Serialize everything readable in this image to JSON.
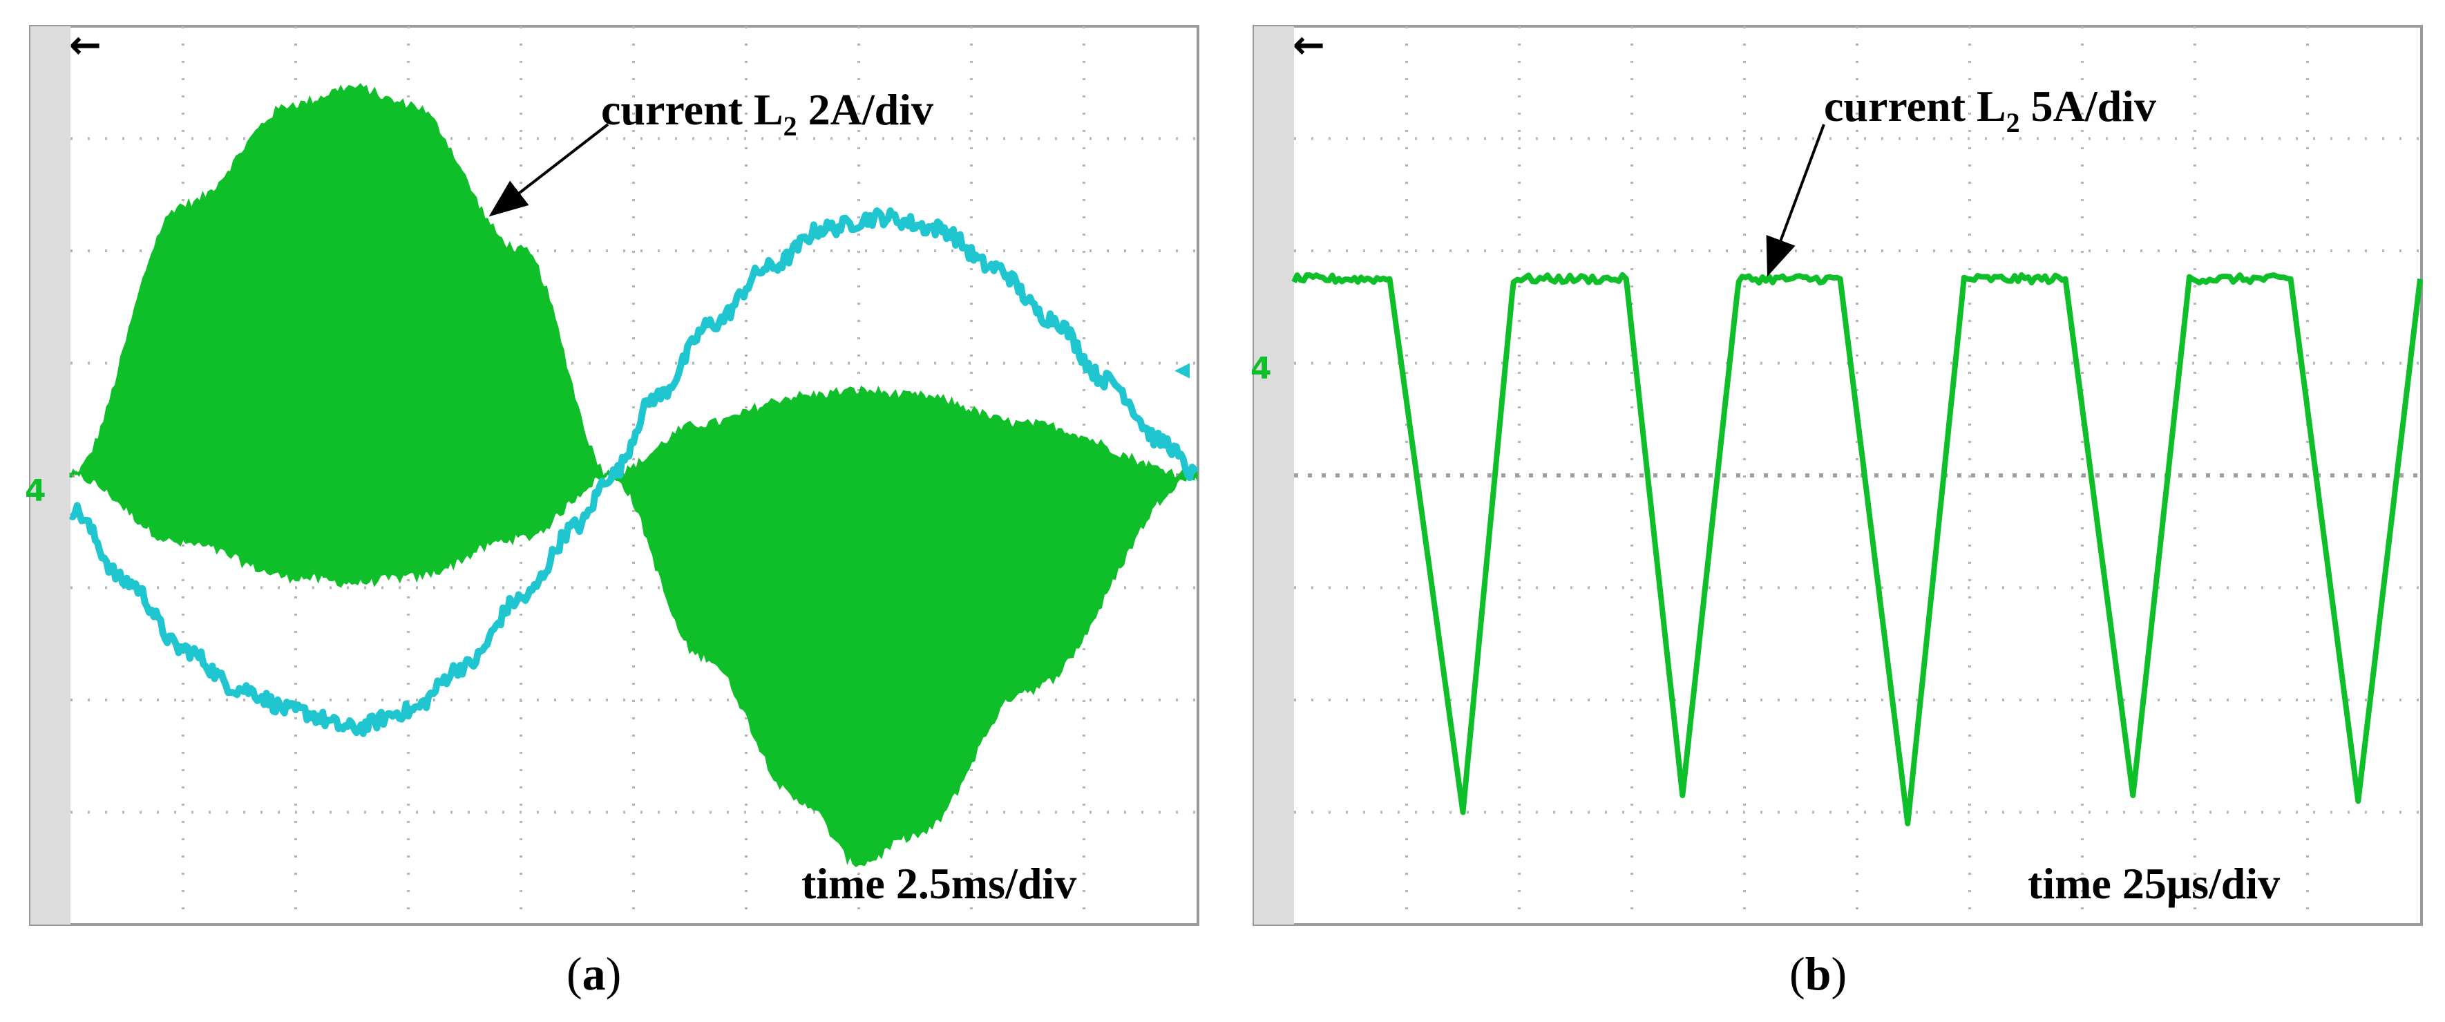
{
  "chart_data": [
    {
      "panel_label": "(a)",
      "panel_letter": "a",
      "type": "line",
      "title": "",
      "annotations": {
        "trace_label_prefix": "current L",
        "trace_label_sub": "2",
        "trace_label_suffix": " 2A/div",
        "timebase": "time 2.5ms/div"
      },
      "grid": true,
      "divisions": {
        "x": 10,
        "y": 8
      },
      "xlim": [
        0,
        10
      ],
      "ylim": [
        -4,
        4
      ],
      "colors": {
        "green": "#0fbf2a",
        "cyan": "#1fc6cf"
      },
      "channel_marker": "4",
      "series": [
        {
          "color": "#0fbf2a",
          "kind": "high-frequency band (envelope)",
          "x": [
            0,
            1,
            2,
            2.5,
            3,
            4,
            4.8,
            5.6,
            6.5,
            7,
            7.5,
            8.5,
            10
          ],
          "upper": [
            0,
            2.4,
            3.3,
            3.45,
            3.3,
            2.0,
            0,
            0.45,
            0.7,
            0.75,
            0.7,
            0.45,
            0
          ],
          "lower": [
            0,
            -0.6,
            -0.9,
            -0.95,
            -0.9,
            -0.55,
            0,
            -1.6,
            -2.9,
            -3.45,
            -3.2,
            -1.9,
            0
          ]
        },
        {
          "color": "#1fc6cf",
          "kind": "sinusoid",
          "x": [
            0,
            0.5,
            1,
            1.5,
            2,
            2.5,
            3,
            3.5,
            4,
            4.5,
            4.8,
            5.2,
            5.7,
            6.2,
            6.7,
            7.2,
            7.7,
            8.2,
            8.7,
            9.2,
            9.7,
            10
          ],
          "y": [
            -0.3,
            -0.95,
            -1.55,
            -1.9,
            -2.1,
            -2.25,
            -2.1,
            -1.7,
            -1.1,
            -0.45,
            0,
            0.7,
            1.35,
            1.85,
            2.2,
            2.3,
            2.2,
            1.85,
            1.4,
            0.85,
            0.3,
            0
          ]
        }
      ]
    },
    {
      "panel_label": "(b)",
      "panel_letter": "b",
      "type": "line",
      "title": "",
      "annotations": {
        "trace_label_prefix": "current L",
        "trace_label_sub": "2",
        "trace_label_suffix": " 5A/div",
        "timebase": "time 25μs/div"
      },
      "grid": true,
      "divisions": {
        "x": 10,
        "y": 8
      },
      "xlim": [
        0,
        10
      ],
      "ylim": [
        -4,
        4
      ],
      "colors": {
        "green": "#0fbf2a"
      },
      "channel_marker": "4",
      "series": [
        {
          "color": "#0fbf2a",
          "kind": "pulsed waveform",
          "x": [
            0,
            0.85,
            1.5,
            1.95,
            2.95,
            3.45,
            3.95,
            4.85,
            5.45,
            5.95,
            6.85,
            7.45,
            7.95,
            8.85,
            9.45,
            10
          ],
          "y": [
            1.75,
            1.75,
            -3.0,
            1.75,
            1.75,
            -2.85,
            1.75,
            1.75,
            -3.1,
            1.75,
            1.75,
            -2.85,
            1.75,
            1.75,
            -2.9,
            1.75
          ]
        }
      ]
    }
  ]
}
